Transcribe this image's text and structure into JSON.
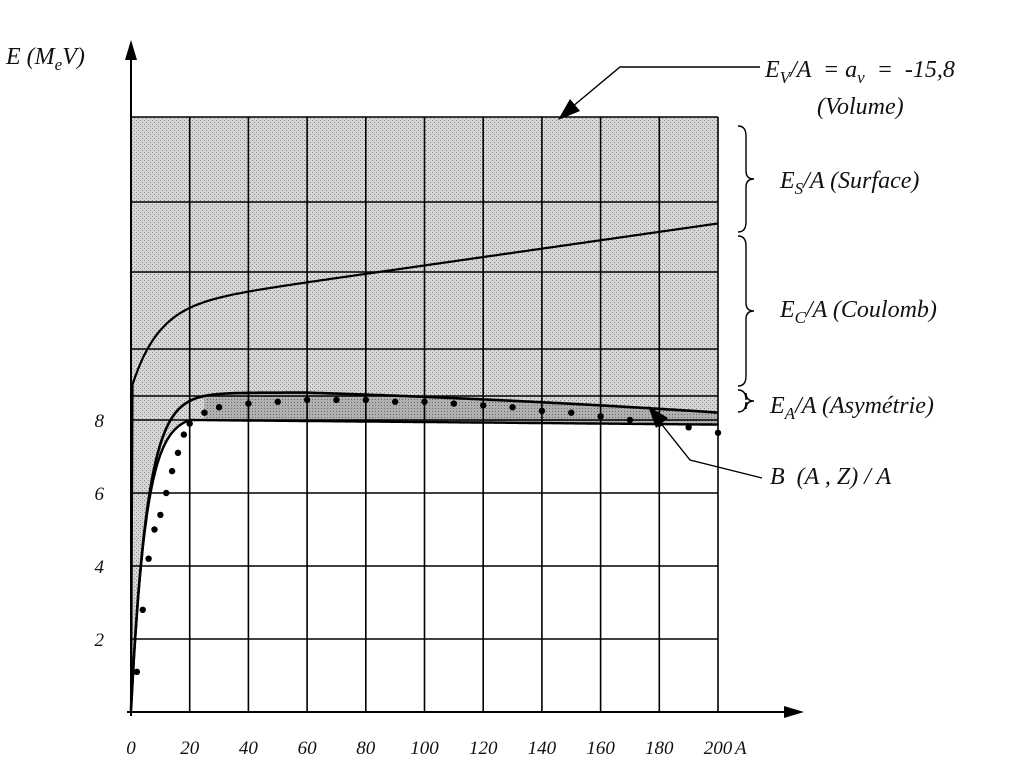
{
  "chart_data": {
    "type": "line",
    "title": "",
    "xlabel": "A",
    "ylabel": "E (MeV)",
    "ylabel_parts": {
      "pre": "E (M",
      "sub": "e",
      "post": "V)"
    },
    "xlim": [
      0,
      200
    ],
    "x_ticks": [
      0,
      20,
      40,
      60,
      80,
      100,
      120,
      140,
      160,
      180,
      200
    ],
    "y_ticks": [
      2,
      4,
      6,
      8
    ],
    "grid": true,
    "series": [
      {
        "name": "B (A , Z) / A",
        "style": "dotted",
        "points": [
          [
            2,
            1.1
          ],
          [
            4,
            2.8
          ],
          [
            6,
            4.2
          ],
          [
            8,
            5.0
          ],
          [
            10,
            5.4
          ],
          [
            12,
            6.0
          ],
          [
            14,
            6.6
          ],
          [
            16,
            7.1
          ],
          [
            18,
            7.6
          ],
          [
            20,
            7.9
          ],
          [
            25,
            8.2
          ],
          [
            30,
            8.35
          ],
          [
            40,
            8.45
          ],
          [
            50,
            8.5
          ],
          [
            60,
            8.55
          ],
          [
            70,
            8.55
          ],
          [
            80,
            8.55
          ],
          [
            90,
            8.5
          ],
          [
            100,
            8.5
          ],
          [
            110,
            8.45
          ],
          [
            120,
            8.4
          ],
          [
            130,
            8.35
          ],
          [
            140,
            8.25
          ],
          [
            150,
            8.2
          ],
          [
            160,
            8.1
          ],
          [
            170,
            8.0
          ],
          [
            180,
            7.9
          ],
          [
            190,
            7.8
          ],
          [
            200,
            7.65
          ]
        ]
      }
    ],
    "annotations": [
      {
        "id": "volume",
        "line1": {
          "pre": "E",
          "sub": "V",
          "post": "/A  = a",
          "sub2": "v",
          "post2": "  =  -15,8"
        },
        "line2": "(Volume)"
      },
      {
        "id": "surface",
        "pre": "E",
        "sub": "S",
        "post": "/A (Surface)"
      },
      {
        "id": "coulomb",
        "pre": "E",
        "sub": "C",
        "post": "/A (Coulomb)"
      },
      {
        "id": "asymetrie",
        "pre": "E",
        "sub": "A",
        "post": "/A (Asymétrie)"
      },
      {
        "id": "binding",
        "text": "B  (A , Z) / A"
      }
    ],
    "colors": {
      "region_light": "#cfcfcf",
      "region_dark": "#a9a9a9",
      "line": "#000000"
    }
  }
}
